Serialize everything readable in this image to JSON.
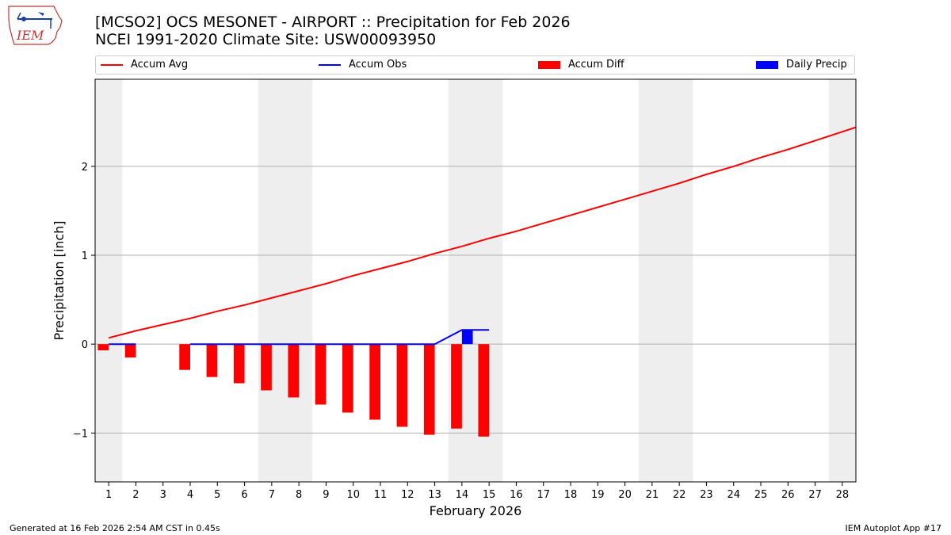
{
  "logo": {
    "text": "IEM"
  },
  "title": {
    "line1": "[MCSO2] OCS MESONET - AIRPORT :: Precipitation for Feb 2026",
    "line2": "NCEI 1991-2020 Climate Site: USW00093950"
  },
  "legend": {
    "items": [
      "Accum Avg",
      "Accum Obs",
      "Accum Diff",
      "Daily Precip"
    ]
  },
  "colors": {
    "avg": "#ff0000",
    "obs": "#0000ff",
    "diff": "#ff0000",
    "daily": "#0000ff",
    "weekend": "#eeeeee",
    "grid": "#b0b0b0"
  },
  "footer": {
    "left": "Generated at 16 Feb 2026 2:54 AM CST in 0.45s",
    "right": "IEM Autoplot App #17"
  },
  "chart_data": {
    "type": "line",
    "title": "[MCSO2] OCS MESONET - AIRPORT :: Precipitation for Feb 2026",
    "xlabel": "February 2026",
    "ylabel": "Precipitation [inch]",
    "xlim": [
      0.5,
      28.5
    ],
    "ylim": [
      -1.55,
      2.98
    ],
    "yticks": [
      -1,
      0,
      1,
      2
    ],
    "ytick_labels": [
      "−1",
      "0",
      "1",
      "2"
    ],
    "xticks": [
      1,
      2,
      3,
      4,
      5,
      6,
      7,
      8,
      9,
      10,
      11,
      12,
      13,
      14,
      15,
      16,
      17,
      18,
      19,
      20,
      21,
      22,
      23,
      24,
      25,
      26,
      27,
      28
    ],
    "grid": "horizontal",
    "shaded_days": [
      1,
      7,
      8,
      14,
      15,
      21,
      22,
      28
    ],
    "series": [
      {
        "name": "Accum Avg",
        "kind": "line",
        "x": [
          1,
          2,
          3,
          4,
          5,
          6,
          7,
          8,
          9,
          10,
          11,
          12,
          13,
          14,
          15,
          16,
          17,
          18,
          19,
          20,
          21,
          22,
          23,
          24,
          25,
          26,
          27,
          28,
          28.5
        ],
        "values": [
          0.07,
          0.15,
          0.22,
          0.29,
          0.37,
          0.44,
          0.52,
          0.6,
          0.68,
          0.77,
          0.85,
          0.93,
          1.02,
          1.1,
          1.19,
          1.27,
          1.36,
          1.45,
          1.54,
          1.63,
          1.72,
          1.81,
          1.91,
          2.0,
          2.1,
          2.19,
          2.29,
          2.39,
          2.44
        ]
      },
      {
        "name": "Accum Obs",
        "kind": "line",
        "x": [
          1,
          2,
          null,
          4,
          5,
          6,
          7,
          8,
          9,
          10,
          11,
          12,
          13,
          14,
          15
        ],
        "values": [
          0,
          0,
          null,
          0,
          0,
          0,
          0,
          0,
          0,
          0,
          0,
          0,
          0,
          0.16,
          0.16
        ]
      },
      {
        "name": "Accum Diff",
        "kind": "bar",
        "x": [
          1,
          2,
          4,
          5,
          6,
          7,
          8,
          9,
          10,
          11,
          12,
          13,
          14,
          15
        ],
        "values": [
          -0.07,
          -0.15,
          -0.29,
          -0.37,
          -0.44,
          -0.52,
          -0.6,
          -0.68,
          -0.77,
          -0.85,
          -0.93,
          -1.02,
          -0.95,
          -1.04
        ]
      },
      {
        "name": "Daily Precip",
        "kind": "bar",
        "x": [
          14
        ],
        "values": [
          0.16
        ]
      }
    ]
  }
}
